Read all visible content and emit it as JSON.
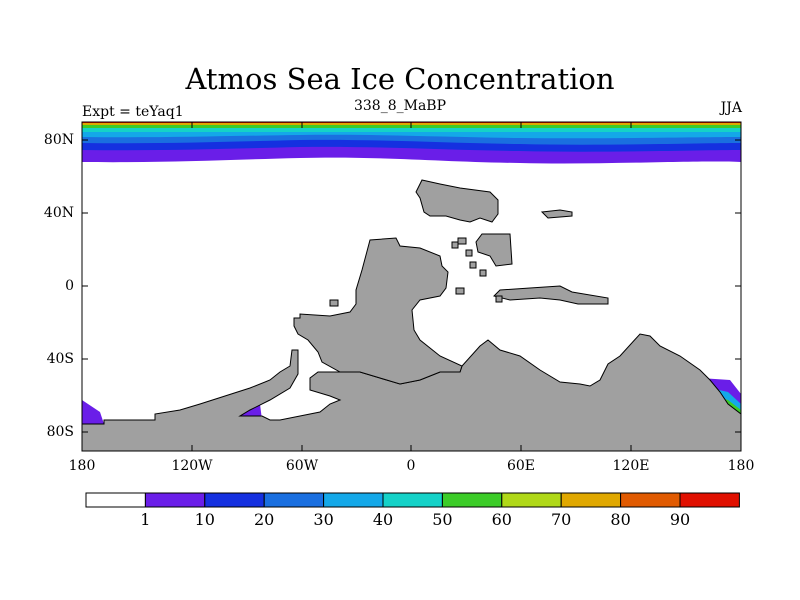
{
  "title": "Atmos Sea Ice Concentration",
  "subtitle": "338_8_MaBP",
  "experiment": "Expt = teYaq1",
  "season": "JJA",
  "lat_ticks": [
    "80N",
    "40N",
    "0",
    "40S",
    "80S"
  ],
  "lon_ticks": [
    "180",
    "120W",
    "60W",
    "0",
    "60E",
    "120E",
    "180"
  ],
  "colorbar": {
    "levels": [
      "1",
      "10",
      "20",
      "30",
      "40",
      "50",
      "60",
      "70",
      "80",
      "90"
    ],
    "colors": [
      "#ffffff",
      "#6a1ee8",
      "#1530e0",
      "#1a6fe0",
      "#14a8e8",
      "#15d2c8",
      "#3ccc28",
      "#b0d818",
      "#e0a800",
      "#e05a00",
      "#e01000"
    ]
  },
  "land_color": "#a0a0a0"
}
